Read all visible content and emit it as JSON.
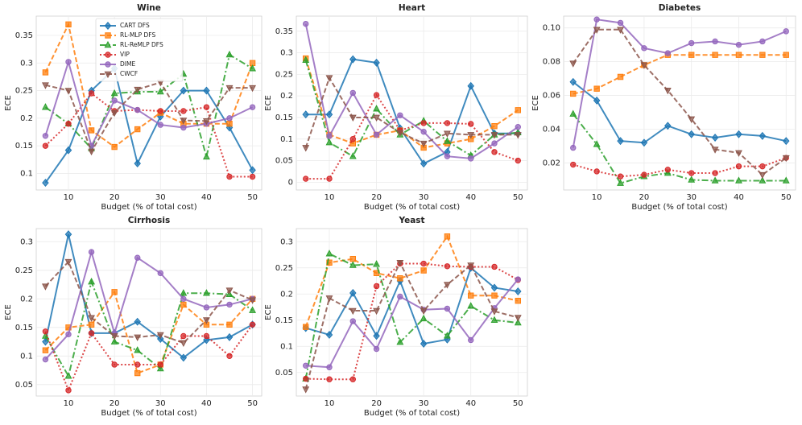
{
  "chart_data": [
    {
      "type": "line",
      "title": "Wine",
      "xlabel": "Budget (% of total cost)",
      "ylabel": "ECE",
      "legend": "upper center",
      "grid": true,
      "x": [
        5,
        10,
        15,
        20,
        25,
        30,
        35,
        40,
        45,
        50
      ],
      "xlim": [
        3,
        52
      ],
      "xticks": [
        10,
        20,
        30,
        40,
        50
      ],
      "ylim": [
        0.07,
        0.385
      ],
      "yticks": [
        0.1,
        0.15,
        0.2,
        0.25,
        0.3,
        0.35
      ],
      "series": [
        {
          "name": "CART DFS",
          "color": "#1f77b4",
          "linestyle": "solid",
          "marker": "D",
          "values": [
            0.083,
            0.142,
            0.25,
            0.29,
            0.118,
            0.203,
            0.25,
            0.25,
            0.183,
            0.106
          ]
        },
        {
          "name": "RL-MLP DFS",
          "color": "#ff7f0e",
          "linestyle": "dashed",
          "marker": "s",
          "values": [
            0.283,
            0.37,
            0.178,
            0.148,
            0.18,
            0.21,
            0.19,
            0.19,
            0.19,
            0.3
          ]
        },
        {
          "name": "RL-ReMLP DFS",
          "color": "#2ca02c",
          "linestyle": "dashdot",
          "marker": "^",
          "values": [
            0.22,
            0.19,
            0.145,
            0.245,
            0.248,
            0.248,
            0.28,
            0.13,
            0.315,
            0.29
          ]
        },
        {
          "name": "VIP",
          "color": "#d62728",
          "linestyle": "dotted",
          "marker": "o",
          "values": [
            0.15,
            0.19,
            0.245,
            0.213,
            0.215,
            0.213,
            0.213,
            0.22,
            0.094,
            0.094
          ]
        },
        {
          "name": "DIME",
          "color": "#9467bd",
          "linestyle": "solid",
          "marker": "o",
          "values": [
            0.168,
            0.302,
            0.15,
            0.232,
            0.215,
            0.188,
            0.183,
            0.19,
            0.2,
            0.22
          ]
        },
        {
          "name": "CWCF",
          "color": "#8c564b",
          "linestyle": "dashed",
          "marker": "v",
          "values": [
            0.26,
            0.25,
            0.14,
            0.21,
            0.252,
            0.265,
            0.196,
            0.195,
            0.255,
            0.255
          ]
        }
      ]
    },
    {
      "type": "line",
      "title": "Heart",
      "xlabel": "Budget (% of total cost)",
      "ylabel": "ECE",
      "grid": true,
      "x": [
        5,
        10,
        15,
        20,
        25,
        30,
        35,
        40,
        45,
        50
      ],
      "xlim": [
        3,
        52
      ],
      "xticks": [
        10,
        20,
        30,
        40,
        50
      ],
      "ylim": [
        -0.018,
        0.385
      ],
      "yticks": [
        0.0,
        0.05,
        0.1,
        0.15,
        0.2,
        0.25,
        0.3,
        0.35
      ],
      "series": [
        {
          "name": "CART DFS",
          "color": "#1f77b4",
          "linestyle": "solid",
          "marker": "D",
          "values": [
            0.157,
            0.157,
            0.285,
            0.277,
            0.125,
            0.043,
            0.07,
            0.223,
            0.113,
            0.113
          ]
        },
        {
          "name": "RL-MLP DFS",
          "color": "#ff7f0e",
          "linestyle": "dashed",
          "marker": "s",
          "values": [
            0.287,
            0.11,
            0.09,
            0.11,
            0.12,
            0.08,
            0.09,
            0.1,
            0.13,
            0.167
          ]
        },
        {
          "name": "RL-ReMLP DFS",
          "color": "#2ca02c",
          "linestyle": "dashdot",
          "marker": "^",
          "values": [
            0.283,
            0.092,
            0.06,
            0.17,
            0.11,
            0.142,
            0.095,
            0.062,
            0.11,
            0.115
          ]
        },
        {
          "name": "VIP",
          "color": "#d62728",
          "linestyle": "dotted",
          "marker": "o",
          "values": [
            0.008,
            0.008,
            0.1,
            0.202,
            0.12,
            0.137,
            0.137,
            0.135,
            0.07,
            0.05
          ]
        },
        {
          "name": "DIME",
          "color": "#9467bd",
          "linestyle": "solid",
          "marker": "o",
          "values": [
            0.367,
            0.107,
            0.207,
            0.11,
            0.155,
            0.117,
            0.06,
            0.055,
            0.09,
            0.128
          ]
        },
        {
          "name": "CWCF",
          "color": "#8c564b",
          "linestyle": "dashed",
          "marker": "v",
          "values": [
            0.08,
            0.242,
            0.15,
            0.15,
            0.115,
            0.09,
            0.113,
            0.11,
            0.11,
            0.11
          ]
        }
      ]
    },
    {
      "type": "line",
      "title": "Diabetes",
      "xlabel": "Budget (% of total cost)",
      "ylabel": "ECE",
      "grid": true,
      "x": [
        5,
        10,
        15,
        20,
        25,
        30,
        35,
        40,
        45,
        50
      ],
      "xlim": [
        3,
        52
      ],
      "xticks": [
        10,
        20,
        30,
        40,
        50
      ],
      "ylim": [
        0.004,
        0.107
      ],
      "yticks": [
        {
          "value": 0.02,
          "label": "0.02"
        },
        {
          "value": 0.04,
          "label": "0.04"
        },
        {
          "value": 0.06,
          "label": "0.06"
        },
        {
          "value": 0.08,
          "label": "0.08"
        },
        {
          "value": 0.1,
          "label": "0.10"
        }
      ],
      "series": [
        {
          "name": "CART DFS",
          "color": "#1f77b4",
          "linestyle": "solid",
          "marker": "D",
          "values": [
            0.068,
            0.057,
            0.033,
            0.032,
            0.042,
            0.037,
            0.035,
            0.037,
            0.036,
            0.033
          ]
        },
        {
          "name": "RL-MLP DFS",
          "color": "#ff7f0e",
          "linestyle": "dashed",
          "marker": "s",
          "values": [
            0.061,
            0.064,
            0.071,
            0.078,
            0.084,
            0.084,
            0.084,
            0.084,
            0.084,
            0.084
          ]
        },
        {
          "name": "RL-ReMLP DFS",
          "color": "#2ca02c",
          "linestyle": "dashdot",
          "marker": "^",
          "values": [
            0.049,
            0.031,
            0.008,
            0.012,
            0.014,
            0.01,
            0.0095,
            0.0095,
            0.0095,
            0.0095
          ]
        },
        {
          "name": "VIP",
          "color": "#d62728",
          "linestyle": "dotted",
          "marker": "o",
          "values": [
            0.019,
            0.015,
            0.012,
            0.013,
            0.016,
            0.014,
            0.014,
            0.018,
            0.018,
            0.023
          ]
        },
        {
          "name": "DIME",
          "color": "#9467bd",
          "linestyle": "solid",
          "marker": "o",
          "values": [
            0.029,
            0.105,
            0.103,
            0.088,
            0.085,
            0.091,
            0.092,
            0.09,
            0.092,
            0.098
          ]
        },
        {
          "name": "CWCF",
          "color": "#8c564b",
          "linestyle": "dashed",
          "marker": "v",
          "values": [
            0.079,
            0.099,
            0.099,
            0.078,
            0.063,
            0.046,
            0.028,
            0.026,
            0.013,
            0.023
          ]
        }
      ]
    },
    {
      "type": "line",
      "title": "Cirrhosis",
      "xlabel": "Budget (% of total cost)",
      "ylabel": "ECE",
      "grid": true,
      "x": [
        5,
        10,
        15,
        20,
        25,
        30,
        35,
        40,
        45,
        50
      ],
      "xlim": [
        3,
        52
      ],
      "xticks": [
        10,
        20,
        30,
        40,
        50
      ],
      "ylim": [
        0.03,
        0.323
      ],
      "yticks": [
        0.05,
        0.1,
        0.15,
        0.2,
        0.25,
        0.3
      ],
      "series": [
        {
          "name": "CART DFS",
          "color": "#1f77b4",
          "linestyle": "solid",
          "marker": "D",
          "values": [
            0.125,
            0.313,
            0.14,
            0.14,
            0.16,
            0.13,
            0.097,
            0.128,
            0.133,
            0.155
          ]
        },
        {
          "name": "RL-MLP DFS",
          "color": "#ff7f0e",
          "linestyle": "dashed",
          "marker": "s",
          "values": [
            0.11,
            0.15,
            0.155,
            0.212,
            0.07,
            0.085,
            0.19,
            0.155,
            0.155,
            0.2
          ]
        },
        {
          "name": "RL-ReMLP DFS",
          "color": "#2ca02c",
          "linestyle": "dashdot",
          "marker": "^",
          "values": [
            0.135,
            0.065,
            0.23,
            0.125,
            0.11,
            0.078,
            0.21,
            0.21,
            0.208,
            0.18
          ]
        },
        {
          "name": "VIP",
          "color": "#d62728",
          "linestyle": "dotted",
          "marker": "o",
          "values": [
            0.143,
            0.04,
            0.14,
            0.085,
            0.085,
            0.085,
            0.135,
            0.135,
            0.1,
            0.155
          ]
        },
        {
          "name": "DIME",
          "color": "#9467bd",
          "linestyle": "solid",
          "marker": "o",
          "values": [
            0.094,
            0.138,
            0.282,
            0.14,
            0.272,
            0.245,
            0.2,
            0.185,
            0.19,
            0.2
          ]
        },
        {
          "name": "CWCF",
          "color": "#8c564b",
          "linestyle": "dashed",
          "marker": "v",
          "values": [
            0.222,
            0.265,
            0.167,
            0.135,
            0.133,
            0.137,
            0.123,
            0.163,
            0.215,
            0.198
          ]
        }
      ]
    },
    {
      "type": "line",
      "title": "Yeast",
      "xlabel": "Budget (% of total cost)",
      "ylabel": "ECE",
      "grid": true,
      "x": [
        5,
        10,
        15,
        20,
        25,
        30,
        35,
        40,
        45,
        50
      ],
      "xlim": [
        3,
        52
      ],
      "xticks": [
        10,
        20,
        30,
        40,
        50
      ],
      "ylim": [
        0.005,
        0.325
      ],
      "yticks": [
        0.05,
        0.1,
        0.15,
        0.2,
        0.25,
        0.3
      ],
      "series": [
        {
          "name": "CART DFS",
          "color": "#1f77b4",
          "linestyle": "solid",
          "marker": "D",
          "values": [
            0.135,
            0.122,
            0.202,
            0.12,
            0.225,
            0.105,
            0.113,
            0.25,
            0.212,
            0.205
          ]
        },
        {
          "name": "RL-MLP DFS",
          "color": "#ff7f0e",
          "linestyle": "dashed",
          "marker": "s",
          "values": [
            0.137,
            0.26,
            0.267,
            0.24,
            0.23,
            0.245,
            0.31,
            0.197,
            0.197,
            0.187
          ]
        },
        {
          "name": "RL-ReMLP DFS",
          "color": "#2ca02c",
          "linestyle": "dashdot",
          "marker": "^",
          "values": [
            0.038,
            0.277,
            0.255,
            0.257,
            0.108,
            0.153,
            0.12,
            0.177,
            0.15,
            0.145
          ]
        },
        {
          "name": "VIP",
          "color": "#d62728",
          "linestyle": "dotted",
          "marker": "o",
          "values": [
            0.038,
            0.037,
            0.037,
            0.215,
            0.258,
            0.258,
            0.253,
            0.252,
            0.252,
            0.227
          ]
        },
        {
          "name": "DIME",
          "color": "#9467bd",
          "linestyle": "solid",
          "marker": "o",
          "values": [
            0.063,
            0.06,
            0.148,
            0.095,
            0.195,
            0.17,
            0.172,
            0.112,
            0.173,
            0.228
          ]
        },
        {
          "name": "CWCF",
          "color": "#8c564b",
          "linestyle": "dashed",
          "marker": "v",
          "values": [
            0.018,
            0.192,
            0.168,
            0.168,
            0.26,
            0.168,
            0.218,
            0.255,
            0.167,
            0.155
          ]
        }
      ]
    }
  ]
}
